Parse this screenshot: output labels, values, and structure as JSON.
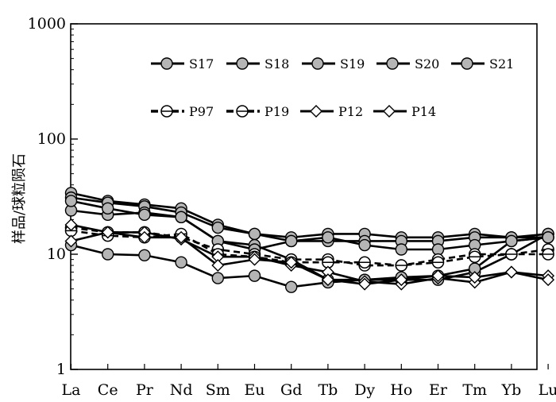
{
  "chart_data": {
    "type": "line",
    "yscale": "log",
    "ylim": [
      1,
      1000
    ],
    "ylabel": "样品/球粒陨石",
    "xlabel": "",
    "title": "",
    "categories": [
      "La",
      "Ce",
      "Pr",
      "Nd",
      "Sm",
      "Eu",
      "Gd",
      "Tb",
      "Dy",
      "Ho",
      "Er",
      "Tm",
      "Yb",
      "Lu"
    ],
    "y_ticks": [
      "1",
      "10",
      "100",
      "1000"
    ],
    "legend_position": "top-right",
    "series": [
      {
        "name": "S17",
        "marker": "filled-circle",
        "line": "solid",
        "values": [
          34,
          29,
          27,
          25,
          18,
          15,
          14,
          15,
          15,
          14,
          14,
          15,
          14,
          14
        ]
      },
      {
        "name": "S18",
        "marker": "filled-circle",
        "line": "solid",
        "values": [
          31,
          28,
          26,
          23,
          17,
          15,
          13,
          13,
          13,
          13,
          13,
          14,
          14,
          15
        ]
      },
      {
        "name": "S19",
        "marker": "filled-circle",
        "line": "solid",
        "values": [
          24,
          22,
          23,
          21,
          13,
          12,
          9,
          6,
          6,
          6,
          6,
          7,
          10,
          15
        ]
      },
      {
        "name": "S20",
        "marker": "filled-circle",
        "line": "solid",
        "values": [
          29,
          25,
          22,
          21,
          13,
          11,
          13,
          14,
          12,
          11,
          11,
          12,
          13,
          14
        ]
      },
      {
        "name": "S21",
        "marker": "filled-circle",
        "line": "solid",
        "values": [
          12,
          10,
          9.8,
          8.5,
          6.2,
          6.5,
          5.2,
          5.7,
          6,
          6.3,
          6.5,
          7.5,
          13,
          14
        ]
      },
      {
        "name": "P97",
        "marker": "open-circle",
        "line": "dashed",
        "values": [
          17,
          15.5,
          15.5,
          14,
          11,
          10,
          9,
          9,
          8,
          8,
          9,
          10,
          10,
          11
        ]
      },
      {
        "name": "P19",
        "marker": "open-circle",
        "line": "dashed",
        "values": [
          16,
          14.5,
          14,
          15,
          10,
          9.5,
          8.5,
          8.5,
          8.5,
          8,
          8.5,
          9.5,
          10,
          10
        ]
      },
      {
        "name": "P12",
        "marker": "open-diamond",
        "line": "solid",
        "values": [
          18,
          15.5,
          15.5,
          13.5,
          9.5,
          9.5,
          8,
          7,
          5.8,
          5.5,
          6.2,
          5.7,
          7,
          6.5
        ]
      },
      {
        "name": "P14",
        "marker": "open-diamond",
        "line": "solid",
        "values": [
          13,
          15.5,
          14,
          14,
          8,
          9,
          8.5,
          6,
          5.5,
          6,
          6.5,
          6.3,
          7,
          6
        ]
      }
    ]
  }
}
